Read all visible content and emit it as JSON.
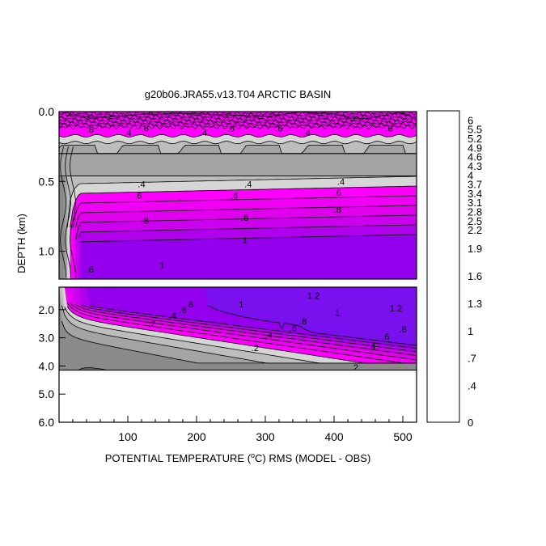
{
  "chart_data": {
    "type": "heatmap",
    "title": "g20b06.JRA55.v13.T04 ARCTIC BASIN",
    "xlabel_prefix": "POTENTIAL TEMPERATURE (",
    "xlabel_degree": "o",
    "xlabel_suffix": "C) RMS (MODEL - OBS)",
    "ylabel": "DEPTH (km)",
    "x_range": [
      0,
      520
    ],
    "x_ticks": [
      {
        "value": 100,
        "label": "100"
      },
      {
        "value": 200,
        "label": "200"
      },
      {
        "value": 300,
        "label": "300"
      },
      {
        "value": 400,
        "label": "400"
      },
      {
        "value": 500,
        "label": "500"
      }
    ],
    "upper_panel": {
      "depth_range_km": [
        0.0,
        1.2
      ],
      "y_ticks": [
        {
          "value": 0.0,
          "label": "0.0"
        },
        {
          "value": 0.5,
          "label": "0.5"
        },
        {
          "value": 1.0,
          "label": "1.0"
        }
      ]
    },
    "lower_panel": {
      "depth_range_km": [
        1.2,
        6.0
      ],
      "data_bottom_km": 4.15,
      "y_ticks": [
        {
          "value": 2.0,
          "label": "2.0"
        },
        {
          "value": 3.0,
          "label": "3.0"
        },
        {
          "value": 4.0,
          "label": "4.0"
        },
        {
          "value": 5.0,
          "label": "5.0"
        },
        {
          "value": 6.0,
          "label": "6.0"
        }
      ]
    },
    "colorbar": {
      "levels": [
        0,
        0.1,
        0.2,
        0.3,
        0.4,
        0.5,
        0.6,
        0.7,
        0.8,
        0.9,
        1.0,
        1.1,
        1.2,
        1.3,
        1.4,
        1.5,
        1.6,
        1.7,
        1.8,
        1.9,
        2.0,
        2.2,
        2.5,
        2.8,
        3.1,
        3.4,
        3.7,
        4.0,
        4.3,
        4.6,
        4.9,
        5.2,
        5.5,
        6.0
      ],
      "colors": [
        "#6e6e6e",
        "#8a8a8a",
        "#a4a4a4",
        "#bdbdbd",
        "#d6d6d6",
        "#ff00ff",
        "#f000f4",
        "#e000ee",
        "#cc00ee",
        "#b000ee",
        "#9400ee",
        "#7a10ee",
        "#5e1eee",
        "#4a2aee",
        "#2f2fff",
        "#1e50ff",
        "#1070ff",
        "#0890ff",
        "#00a8ff",
        "#00c4ee",
        "#00dcc8",
        "#00e8a0",
        "#00e070",
        "#10d040",
        "#50d000",
        "#90e000",
        "#c8e800",
        "#f0f000",
        "#ffd000",
        "#ffa800",
        "#ff8000",
        "#ff5000",
        "#ff2000",
        "#d00000"
      ],
      "labels": [
        {
          "value": 0,
          "label": "0"
        },
        {
          "value": 0.4,
          "label": ".4"
        },
        {
          "value": 0.7,
          "label": ".7"
        },
        {
          "value": 1.0,
          "label": "1"
        },
        {
          "value": 1.3,
          "label": "1.3"
        },
        {
          "value": 1.6,
          "label": "1.6"
        },
        {
          "value": 1.9,
          "label": "1.9"
        },
        {
          "value": 2.2,
          "label": "2.2"
        },
        {
          "value": 2.5,
          "label": "2.5"
        },
        {
          "value": 2.8,
          "label": "2.8"
        },
        {
          "value": 3.1,
          "label": "3.1"
        },
        {
          "value": 3.4,
          "label": "3.4"
        },
        {
          "value": 3.7,
          "label": "3.7"
        },
        {
          "value": 4.0,
          "label": "4"
        },
        {
          "value": 4.3,
          "label": "4.3"
        },
        {
          "value": 4.6,
          "label": "4.6"
        },
        {
          "value": 4.9,
          "label": "4.9"
        },
        {
          "value": 5.2,
          "label": "5.2"
        },
        {
          "value": 5.5,
          "label": "5.5"
        },
        {
          "value": 6.0,
          "label": "6"
        }
      ]
    },
    "contour_labels": [
      {
        "text": ".6",
        "x": 45,
        "depth": 0.13
      },
      {
        "text": ".4",
        "x": 100,
        "depth": 0.15
      },
      {
        "text": ".6",
        "x": 125,
        "depth": 0.12
      },
      {
        "text": ".4",
        "x": 210,
        "depth": 0.15
      },
      {
        "text": ".6",
        "x": 250,
        "depth": 0.12
      },
      {
        "text": ".6",
        "x": 320,
        "depth": 0.12
      },
      {
        "text": ".4",
        "x": 360,
        "depth": 0.15
      },
      {
        "text": ".6",
        "x": 480,
        "depth": 0.12
      },
      {
        "text": ".4",
        "x": 120,
        "depth": 0.52
      },
      {
        "text": ".4",
        "x": 275,
        "depth": 0.52
      },
      {
        "text": ".4",
        "x": 410,
        "depth": 0.5
      },
      {
        "text": ".6",
        "x": 115,
        "depth": 0.6
      },
      {
        "text": ".6",
        "x": 255,
        "depth": 0.6
      },
      {
        "text": ".6",
        "x": 405,
        "depth": 0.58
      },
      {
        "text": ".8",
        "x": 125,
        "depth": 0.78
      },
      {
        "text": ".8",
        "x": 270,
        "depth": 0.76
      },
      {
        "text": ".8",
        "x": 405,
        "depth": 0.7
      },
      {
        "text": "1",
        "x": 270,
        "depth": 0.92
      },
      {
        "text": "1",
        "x": 150,
        "depth": 1.1
      },
      {
        "text": ".6",
        "x": 45,
        "depth": 1.13
      },
      {
        "text": ".8",
        "x": 190,
        "depth": 1.8
      },
      {
        "text": ".6",
        "x": 180,
        "depth": 2.0
      },
      {
        "text": ".4",
        "x": 165,
        "depth": 2.2
      },
      {
        "text": "1",
        "x": 265,
        "depth": 1.8
      },
      {
        "text": ".2",
        "x": 135,
        "depth": 2.5
      },
      {
        "text": "1.2",
        "x": 370,
        "depth": 1.5
      },
      {
        "text": "1.2",
        "x": 490,
        "depth": 1.95
      },
      {
        "text": "1",
        "x": 405,
        "depth": 2.1
      },
      {
        "text": ".8",
        "x": 355,
        "depth": 2.4
      },
      {
        "text": ".6",
        "x": 340,
        "depth": 2.65
      },
      {
        "text": ".4",
        "x": 305,
        "depth": 2.9
      },
      {
        "text": ".8",
        "x": 500,
        "depth": 2.7
      },
      {
        "text": ".6",
        "x": 475,
        "depth": 2.95
      },
      {
        "text": ".4",
        "x": 455,
        "depth": 3.3
      },
      {
        "text": ".2",
        "x": 285,
        "depth": 3.35
      },
      {
        "text": ".2",
        "x": 430,
        "depth": 4.05
      }
    ]
  }
}
